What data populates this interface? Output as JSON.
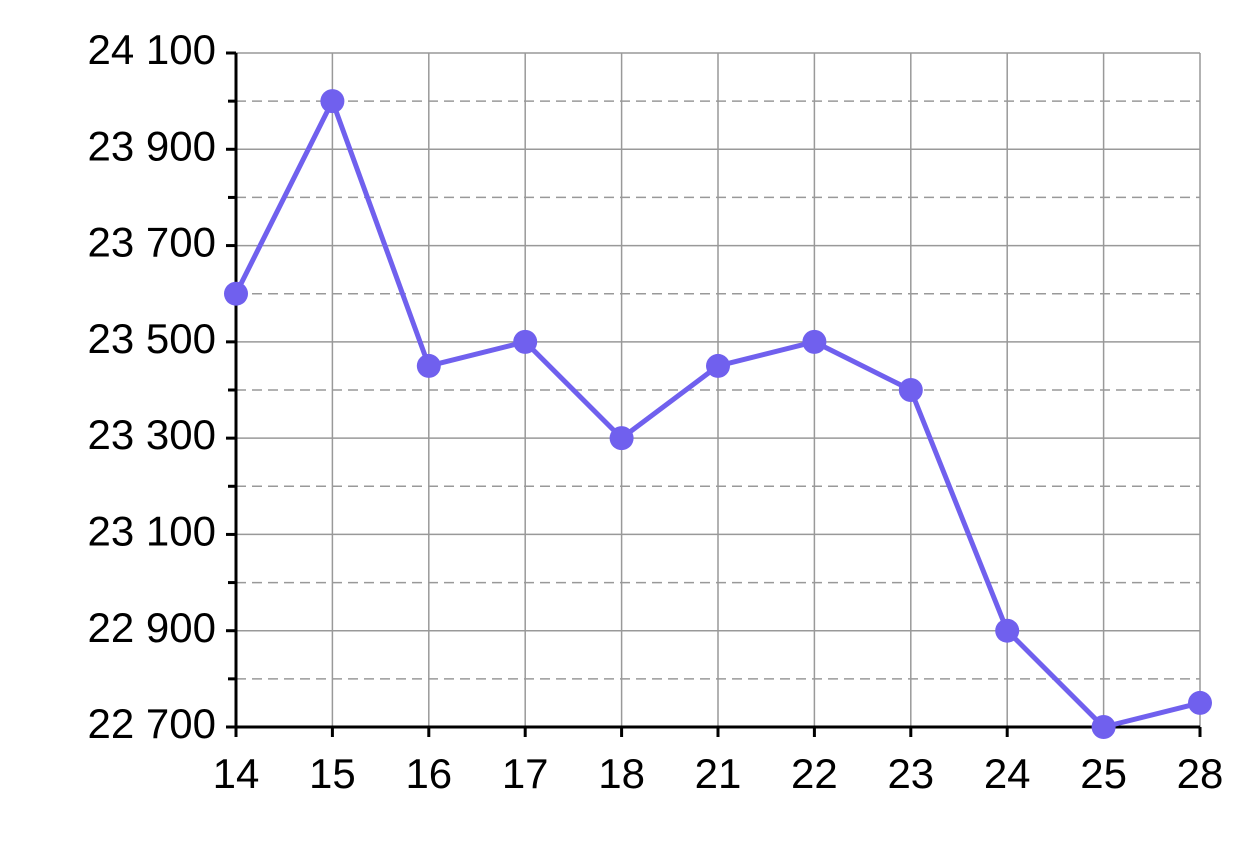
{
  "chart_data": {
    "type": "line",
    "categories": [
      "14",
      "15",
      "16",
      "17",
      "18",
      "21",
      "22",
      "23",
      "24",
      "25",
      "28"
    ],
    "series": [
      {
        "color": "#7060ee",
        "values": [
          23600,
          24000,
          23450,
          23500,
          23300,
          23450,
          23500,
          23400,
          22900,
          22700,
          22750
        ]
      }
    ],
    "ylim": [
      22700,
      24100
    ],
    "yticks": [
      {
        "value": 22700,
        "label": "22 700"
      },
      {
        "value": 22900,
        "label": "22 900"
      },
      {
        "value": 23100,
        "label": "23 100"
      },
      {
        "value": 23300,
        "label": "23 300"
      },
      {
        "value": 23500,
        "label": "23 500"
      },
      {
        "value": 23700,
        "label": "23 700"
      },
      {
        "value": 23900,
        "label": "23 900"
      },
      {
        "value": 24100,
        "label": "24 100"
      }
    ],
    "minor_yticks": [
      22800,
      23000,
      23200,
      23400,
      23600,
      23800,
      24000
    ],
    "grid": true
  }
}
